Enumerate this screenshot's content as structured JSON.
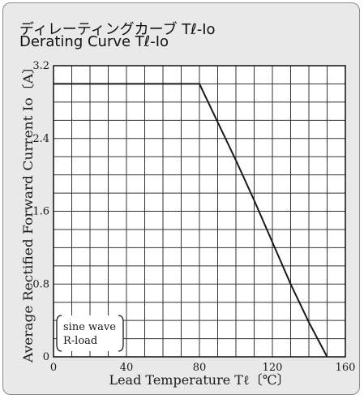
{
  "header": {
    "title_ja": "ディレーティングカーブ Tℓ-Io",
    "title_en": "Derating Curve Tℓ-Io"
  },
  "chart_data": {
    "type": "line",
    "title": "Derating Curve Tℓ-Io",
    "xlabel": "Lead Temperature  Tℓ〔℃〕",
    "ylabel": "Average Rectified Forward Current Io〔A〕",
    "xlim": [
      0,
      160
    ],
    "ylim": [
      0,
      3.2
    ],
    "x_ticks": [
      "0",
      "40",
      "80",
      "120",
      "160"
    ],
    "y_ticks": [
      "0",
      "0.8",
      "1.6",
      "2.4",
      "3.2"
    ],
    "grid": true,
    "grid_x_step": 10,
    "grid_y_step": 0.2,
    "legend_lines": [
      "sine wave",
      "R-load"
    ],
    "legend_position": "bottom-left",
    "series": [
      {
        "x": [
          0,
          80,
          90,
          100,
          110,
          120,
          130,
          140,
          150
        ],
        "y": [
          3.0,
          3.0,
          2.58,
          2.16,
          1.72,
          1.26,
          0.8,
          0.38,
          0.0
        ]
      }
    ],
    "colors": {
      "line": "#1a1a1a",
      "grid": "#333333",
      "background": "#e9e9e9"
    }
  }
}
